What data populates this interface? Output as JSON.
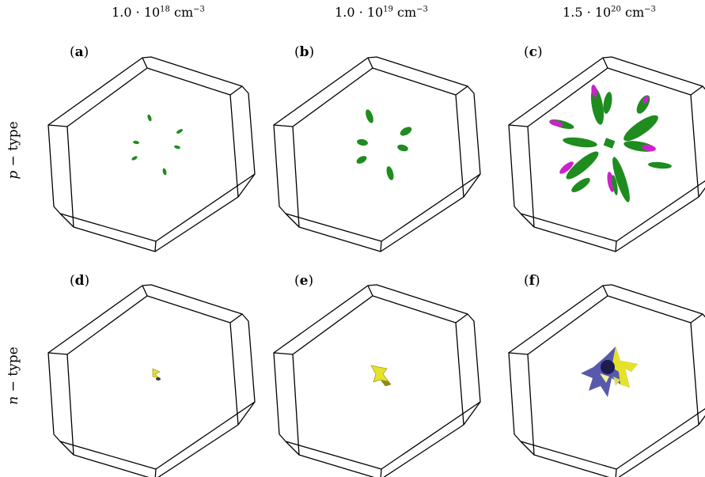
{
  "columns": [
    {
      "mantissa": "1.0 · 10",
      "exponent": "18",
      "unit": "cm",
      "unit_exp": "−3"
    },
    {
      "mantissa": "1.0 · 10",
      "exponent": "19",
      "unit": "cm",
      "unit_exp": "−3"
    },
    {
      "mantissa": "1.5 · 10",
      "exponent": "20",
      "unit": "cm",
      "unit_exp": "−3"
    }
  ],
  "rows": [
    {
      "italic": "p",
      "rest": " − type"
    },
    {
      "italic": "n",
      "rest": " − type"
    }
  ],
  "panels": [
    "a",
    "b",
    "c",
    "d",
    "e",
    "f"
  ],
  "colors": {
    "frame": "#000000",
    "pocket_green": "#1e8c1e",
    "pocket_magenta": "#cc22cc",
    "pocket_yellow": "#e6e22a",
    "pocket_blue": "#3b3b9e"
  }
}
